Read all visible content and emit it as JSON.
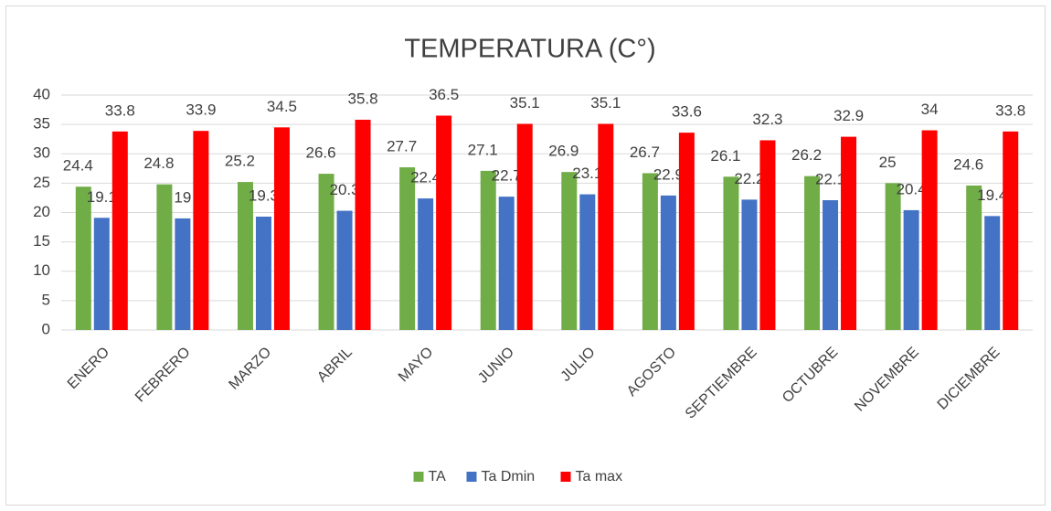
{
  "chart_data": {
    "type": "bar",
    "title": "TEMPERATURA (C°)",
    "categories": [
      "ENERO",
      "FEBRERO",
      "MARZO",
      "ABRIL",
      "MAYO",
      "JUNIO",
      "JULIO",
      "AGOSTO",
      "SEPTIEMBRE",
      "OCTUBRE",
      "NOVEMBRE",
      "DICIEMBRE"
    ],
    "series": [
      {
        "name": "TA",
        "color": "#70ad47",
        "values": [
          24.4,
          24.8,
          25.2,
          26.6,
          27.7,
          27.1,
          26.9,
          26.7,
          26.1,
          26.2,
          25,
          24.6
        ]
      },
      {
        "name": "Ta Dmin",
        "color": "#4472c4",
        "values": [
          19.1,
          19,
          19.3,
          20.3,
          22.4,
          22.7,
          23.1,
          22.9,
          22.2,
          22.1,
          20.4,
          19.4
        ]
      },
      {
        "name": "Ta max",
        "color": "#ff0000",
        "values": [
          33.8,
          33.9,
          34.5,
          35.8,
          36.5,
          35.1,
          35.1,
          33.6,
          32.3,
          32.9,
          34,
          33.8
        ]
      }
    ],
    "ylim": [
      0,
      40
    ],
    "yticks": [
      0,
      5,
      10,
      15,
      20,
      25,
      30,
      35,
      40
    ],
    "grid": true,
    "legend": "bottom"
  }
}
